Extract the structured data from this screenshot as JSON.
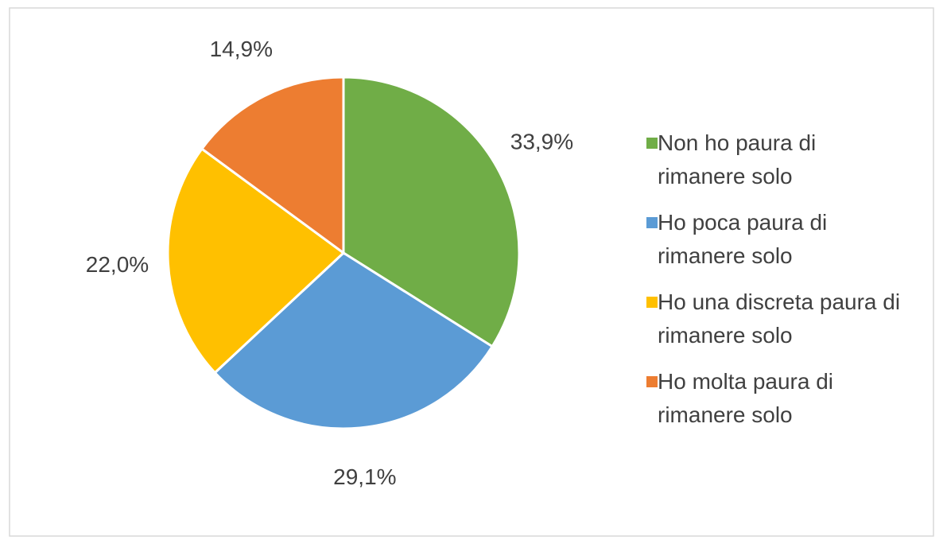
{
  "chart_data": {
    "type": "pie",
    "categories": [
      "Non ho paura di rimanere solo",
      "Ho poca paura di rimanere solo",
      "Ho una discreta paura di rimanere solo",
      "Ho molta paura di rimanere solo"
    ],
    "values": [
      33.9,
      29.1,
      22.0,
      14.9
    ],
    "value_labels": [
      "33,9%",
      "29,1%",
      "22,0%",
      "14,9%"
    ],
    "colors": [
      "#70ad47",
      "#5b9bd5",
      "#ffc000",
      "#ed7d31"
    ],
    "legend": "right"
  }
}
